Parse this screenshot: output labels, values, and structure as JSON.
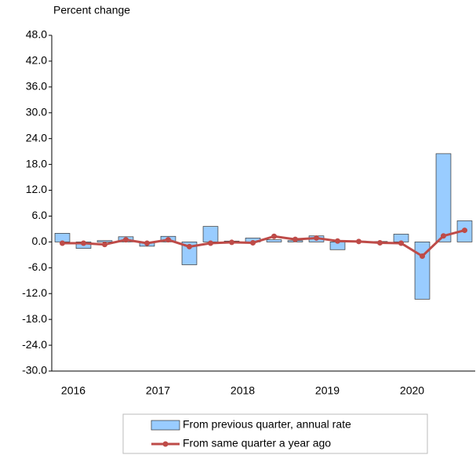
{
  "chart_data": {
    "type": "bar-line",
    "y_axis_label": "Percent change",
    "categories": [
      null,
      null,
      null,
      null,
      null,
      null,
      null,
      null,
      null,
      null,
      null,
      null,
      null,
      null,
      null,
      null,
      null,
      null,
      null,
      null
    ],
    "year_labels": [
      "2016",
      "2017",
      "2018",
      "2019",
      "2020"
    ],
    "series": [
      {
        "name": "From previous quarter, annual rate",
        "type": "bar",
        "color": "#99ccff",
        "values": [
          2.0,
          -1.5,
          0.3,
          1.2,
          -1.0,
          1.3,
          -5.3,
          3.6,
          0.2,
          0.9,
          0.5,
          0.3,
          1.4,
          -1.8,
          0.2,
          0.1,
          1.8,
          -13.3,
          20.5,
          4.9
        ]
      },
      {
        "name": "From same quarter a year ago",
        "type": "line",
        "color": "#be4b48",
        "values": [
          -0.3,
          -0.3,
          -0.6,
          0.5,
          -0.3,
          0.5,
          -1.1,
          -0.3,
          -0.1,
          -0.2,
          1.3,
          0.6,
          0.9,
          0.2,
          0.1,
          -0.2,
          -0.3,
          -3.3,
          1.4,
          2.7
        ]
      }
    ],
    "ylim": [
      -30,
      48
    ],
    "yticks": [
      {
        "value": -30,
        "label": "-30.0"
      },
      {
        "value": -24,
        "label": "-24.0"
      },
      {
        "value": -18,
        "label": "-18.0"
      },
      {
        "value": -12,
        "label": "-12.0"
      },
      {
        "value": -6,
        "label": "-6.0"
      },
      {
        "value": 0,
        "label": "0.0"
      },
      {
        "value": 6,
        "label": "6.0"
      },
      {
        "value": 12,
        "label": "12.0"
      },
      {
        "value": 18,
        "label": "18.0"
      },
      {
        "value": 24,
        "label": "24.0"
      },
      {
        "value": 30,
        "label": "30.0"
      },
      {
        "value": 36,
        "label": "36.0"
      },
      {
        "value": 42,
        "label": "42.0"
      },
      {
        "value": 48,
        "label": "48.0"
      }
    ],
    "grid": false,
    "legend": "bottom"
  }
}
